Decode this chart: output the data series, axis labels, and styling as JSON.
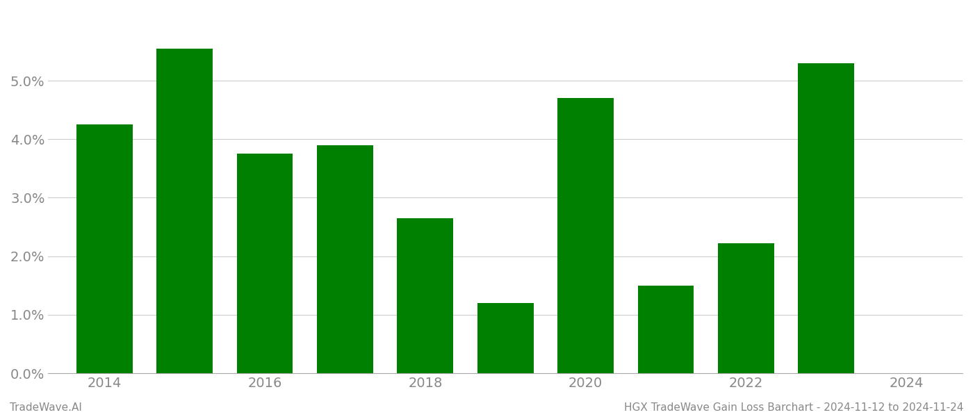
{
  "years": [
    2014,
    2015,
    2016,
    2017,
    2018,
    2019,
    2020,
    2021,
    2022,
    2023
  ],
  "values": [
    0.0425,
    0.0555,
    0.0375,
    0.039,
    0.0265,
    0.012,
    0.047,
    0.015,
    0.0222,
    0.053
  ],
  "bar_color": "#008000",
  "bar_width": 0.7,
  "xlim_left": 2013.3,
  "xlim_right": 2024.7,
  "ylim": [
    0,
    0.062
  ],
  "yticks": [
    0.0,
    0.01,
    0.02,
    0.03,
    0.04,
    0.05
  ],
  "xticks": [
    2014,
    2016,
    2018,
    2020,
    2022,
    2024
  ],
  "footer_left": "TradeWave.AI",
  "footer_right": "HGX TradeWave Gain Loss Barchart - 2024-11-12 to 2024-11-24",
  "footer_fontsize": 11,
  "grid_color": "#cccccc",
  "background_color": "#ffffff",
  "tick_label_color": "#888888",
  "tick_fontsize": 14
}
